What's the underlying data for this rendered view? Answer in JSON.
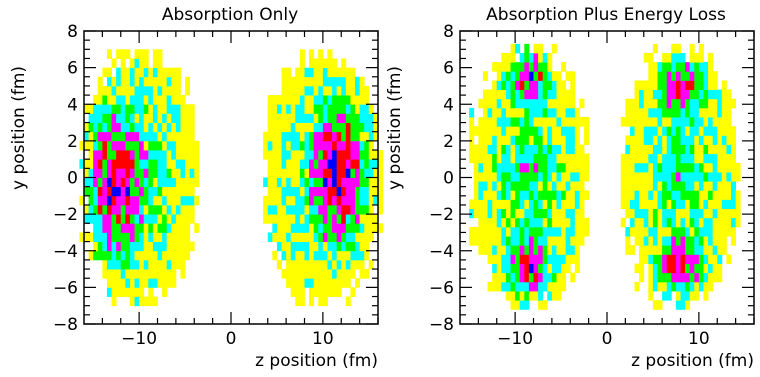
{
  "palette": {
    "level1": "#ffff00",
    "level2": "#00ffff",
    "level3": "#00ff00",
    "level4": "#ff00ff",
    "level5": "#ff0000",
    "level6": "#0000ff",
    "level7": "#000000"
  },
  "chart_data": [
    {
      "type": "heatmap",
      "title": "Absorption Only",
      "xlabel": "z position (fm)",
      "ylabel": "y position (fm)",
      "xlim": [
        -16,
        16
      ],
      "ylim": [
        -8,
        8
      ],
      "xticks": [
        -10,
        0,
        10
      ],
      "xtick_labels": [
        "−10",
        "0",
        "10"
      ],
      "yticks": [
        -8,
        -6,
        -4,
        -2,
        0,
        2,
        4,
        6,
        8
      ],
      "ytick_labels": [
        "−8",
        "−6",
        "−4",
        "−2",
        "0",
        "2",
        "4",
        "6",
        "8"
      ],
      "color_levels": 7,
      "regions": [
        {
          "z_center": -10,
          "y_center": 0,
          "z_half_width": 6.5,
          "y_half_width": 7.0,
          "peak_z": -13,
          "peak_y": -0.5
        },
        {
          "z_center": 10,
          "y_center": 0,
          "z_half_width": 6.5,
          "y_half_width": 7.0,
          "peak_z": 12,
          "peak_y": 0.5
        }
      ]
    },
    {
      "type": "heatmap",
      "title": "Absorption Plus Energy Loss",
      "xlabel": "z position (fm)",
      "ylabel": "y position (fm)",
      "xlim": [
        -16,
        16
      ],
      "ylim": [
        -8,
        8
      ],
      "xticks": [
        -10,
        0,
        10
      ],
      "xtick_labels": [
        "−10",
        "0",
        "10"
      ],
      "yticks": [
        -8,
        -6,
        -4,
        -2,
        0,
        2,
        4,
        6,
        8
      ],
      "ytick_labels": [
        "−8",
        "−6",
        "−4",
        "−2",
        "0",
        "2",
        "4",
        "6",
        "8"
      ],
      "color_levels": 7,
      "regions": [
        {
          "z_center": -8.5,
          "y_center": 0,
          "z_half_width": 6.5,
          "y_half_width": 7.2,
          "peak_z": -8.5,
          "peak_y": 5.5,
          "peak_y2": -5.0
        },
        {
          "z_center": 8.0,
          "y_center": 0,
          "z_half_width": 6.5,
          "y_half_width": 7.2,
          "peak_z": 8.0,
          "peak_y": 5.0,
          "peak_y2": -4.8
        }
      ]
    }
  ]
}
